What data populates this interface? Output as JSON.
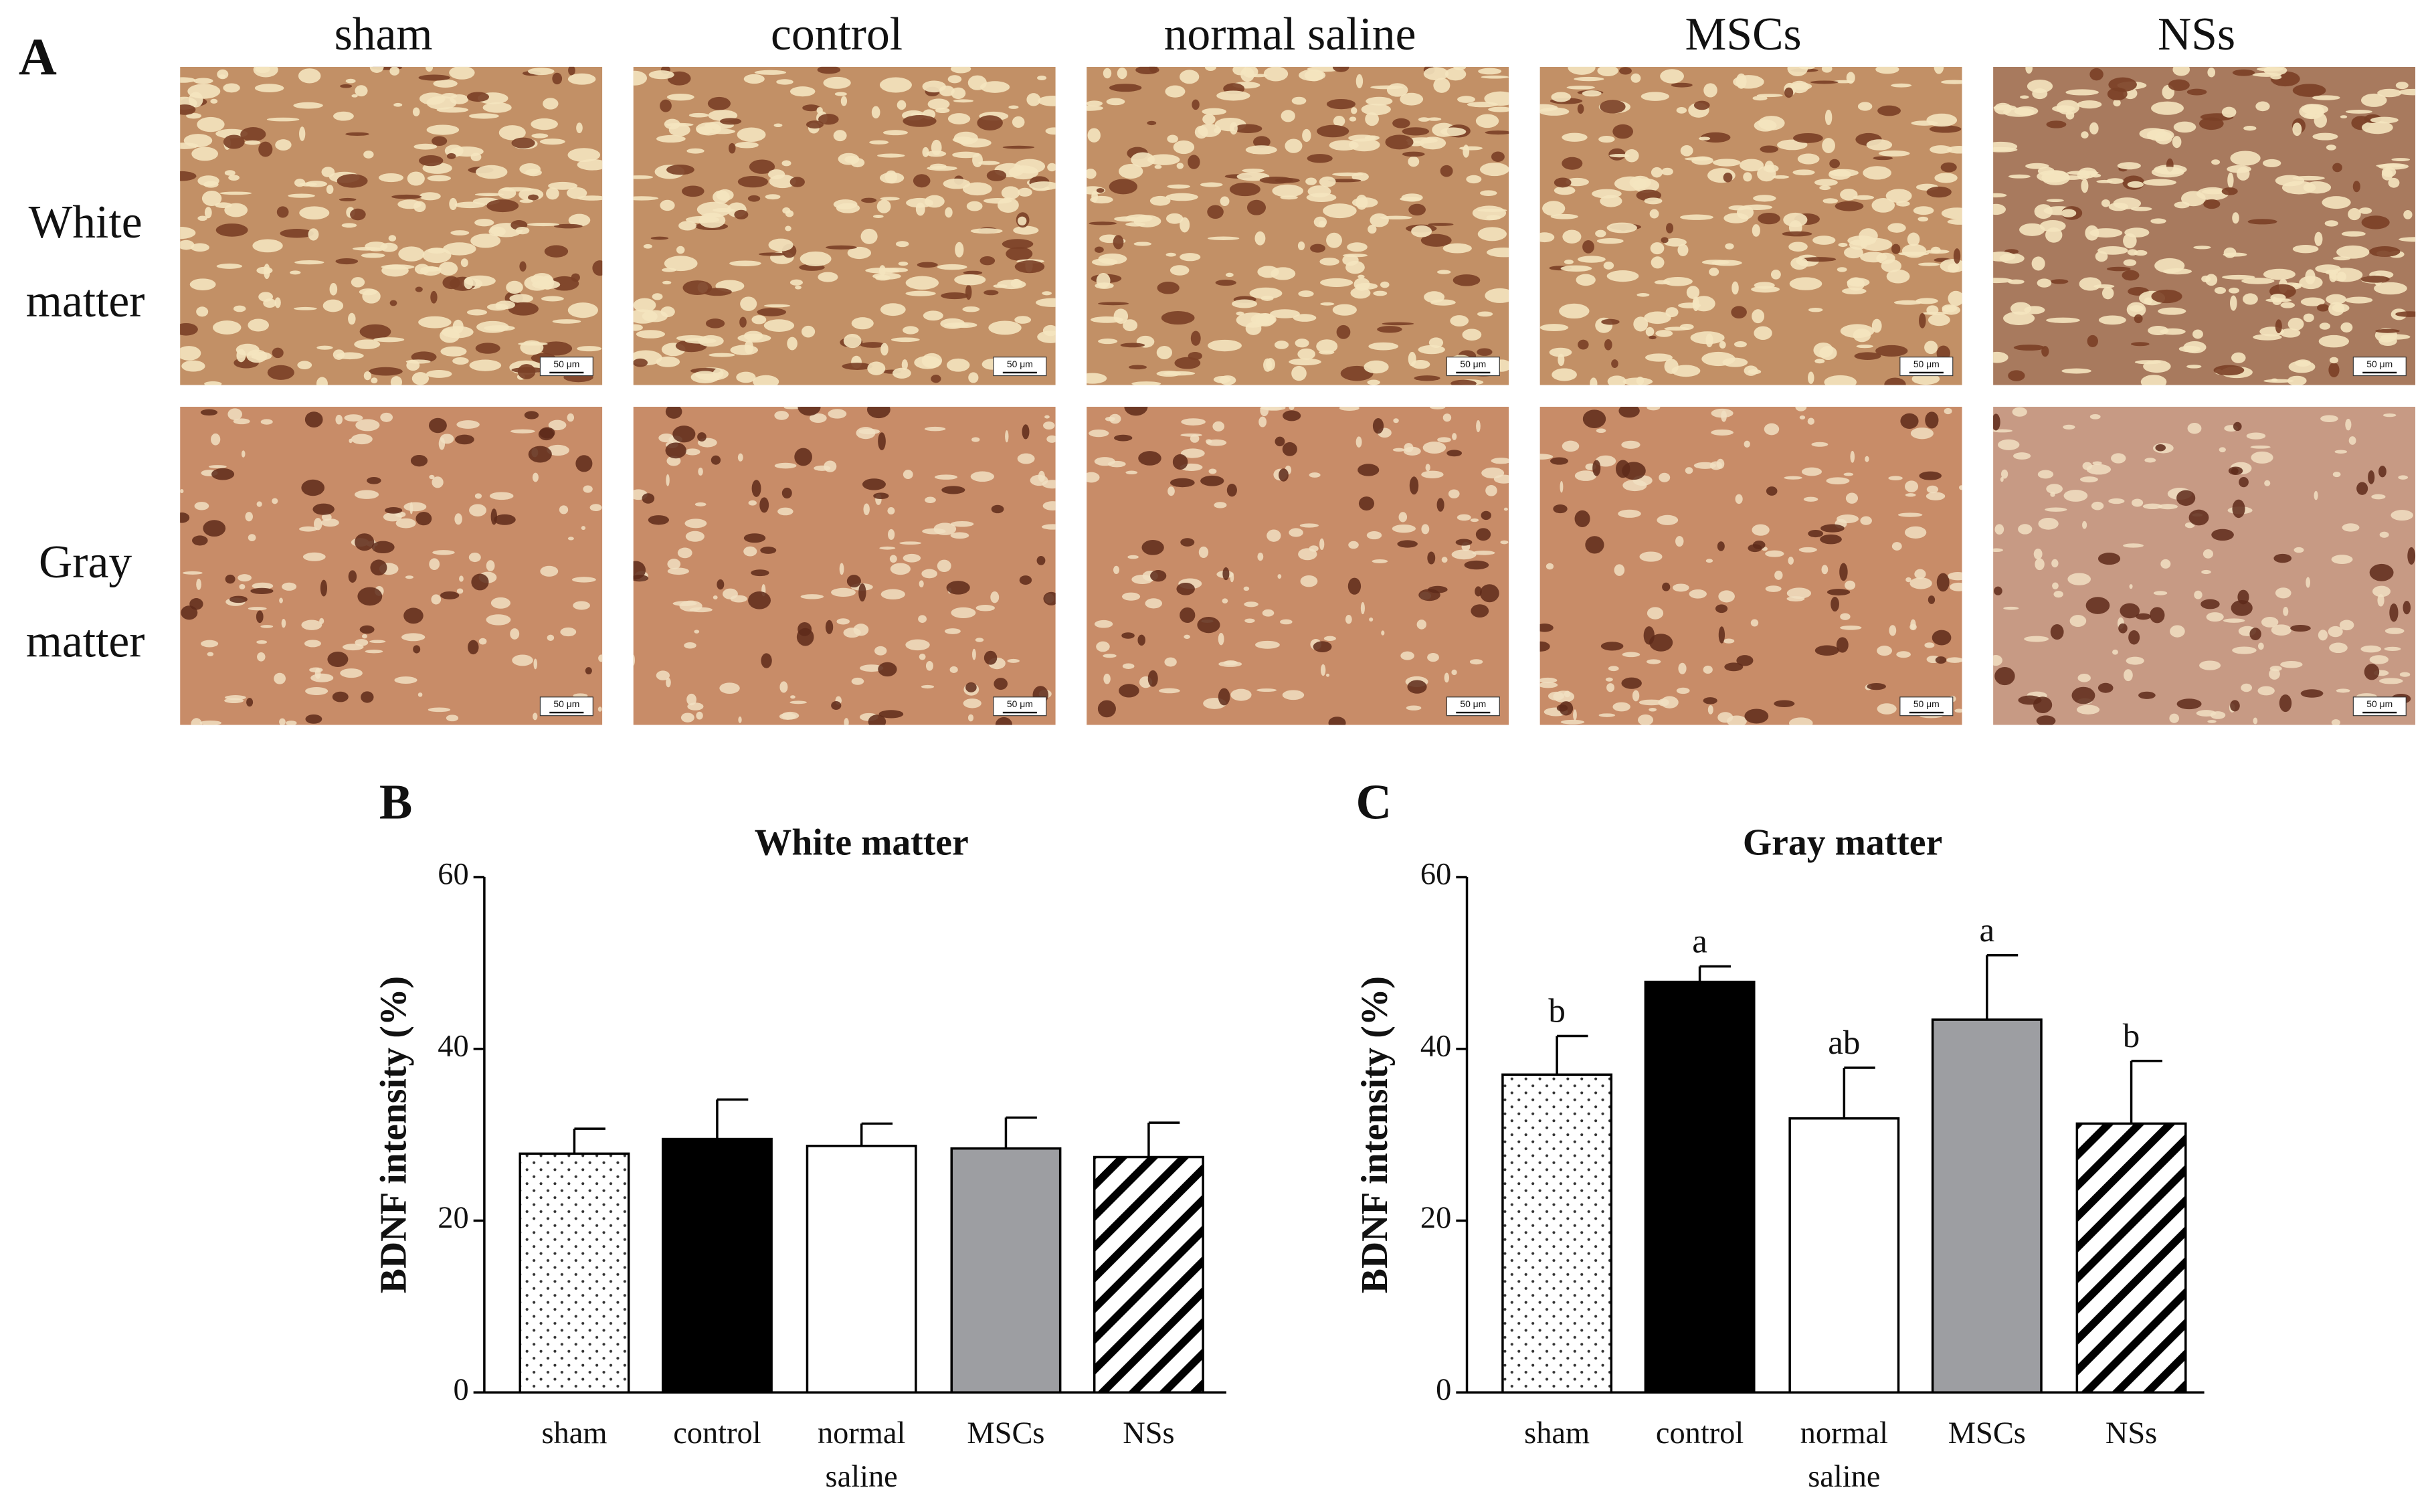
{
  "panel_a": {
    "label": "A",
    "columns": [
      "sham",
      "control",
      "normal saline",
      "MSCs",
      "NSs"
    ],
    "rows": [
      "White matter",
      "Gray matter"
    ],
    "scale_bar": "50 μm"
  },
  "chart_data": [
    {
      "type": "bar",
      "panel": "B",
      "title": "White matter",
      "y_label": "BDNF intensity (%)",
      "categories": [
        "sham",
        "control",
        "normal saline",
        "MSCs",
        "NSs"
      ],
      "values": [
        27.8,
        29.5,
        28.7,
        28.4,
        27.4
      ],
      "errors": [
        2.9,
        4.6,
        2.6,
        3.6,
        4.0
      ],
      "colors": [
        "#ffffff",
        "#000000",
        "#ffffff",
        "#9d9ea2",
        "#ffffff"
      ],
      "patterns": [
        "dots",
        "solid",
        "solid",
        "solid",
        "stripes"
      ],
      "ylim": [
        0,
        60
      ],
      "yticks": [
        0,
        20,
        40,
        60
      ]
    },
    {
      "type": "bar",
      "panel": "C",
      "title": "Gray matter",
      "y_label": "BDNF intensity (%)",
      "categories": [
        "sham",
        "control",
        "normal saline",
        "MSCs",
        "NSs"
      ],
      "values": [
        37.0,
        47.8,
        31.9,
        43.4,
        31.3
      ],
      "errors": [
        4.5,
        1.8,
        5.9,
        7.5,
        7.3
      ],
      "annotations": [
        "b",
        "a",
        "ab",
        "a",
        "b"
      ],
      "colors": [
        "#ffffff",
        "#000000",
        "#ffffff",
        "#9d9ea2",
        "#ffffff"
      ],
      "patterns": [
        "dots",
        "solid",
        "solid",
        "solid",
        "stripes"
      ],
      "ylim": [
        0,
        60
      ],
      "yticks": [
        0,
        20,
        40,
        60
      ]
    }
  ]
}
